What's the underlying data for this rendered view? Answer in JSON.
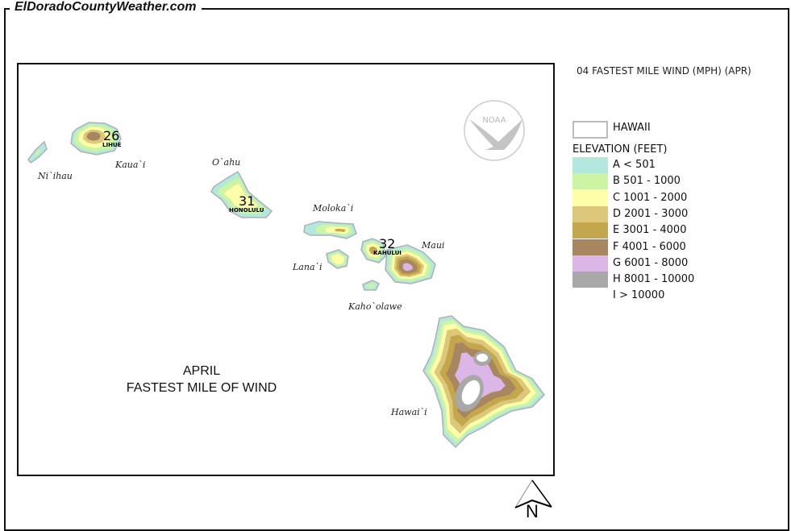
{
  "site_title": "ElDoradoCountyWeather.com",
  "map_heading": "04 FASTEST MILE WIND (MPH) (APR)",
  "map_title": {
    "line1": "APRIL",
    "line2": "FASTEST MILE OF WIND"
  },
  "logo_text": "NOAA",
  "north_label": "N",
  "legend": {
    "boundary_label": "HAWAII",
    "elevation_title": "ELEVATION (FEET)",
    "classes": [
      {
        "label": "A < 501",
        "color": "#b3e8de"
      },
      {
        "label": "B 501 - 1000",
        "color": "#ccf5a3"
      },
      {
        "label": "C 1001 - 2000",
        "color": "#ffffaa"
      },
      {
        "label": "D 2001 - 3000",
        "color": "#dcc77a"
      },
      {
        "label": "E 3001 - 4000",
        "color": "#c4a64c"
      },
      {
        "label": "F 4001 - 6000",
        "color": "#a88660"
      },
      {
        "label": "G 6001 - 8000",
        "color": "#dbb6e6"
      },
      {
        "label": "H 8001 - 10000",
        "color": "#a8a8a8"
      },
      {
        "label": "I > 10000",
        "color": "#ffffff"
      }
    ]
  },
  "places": [
    "Ni`ihau",
    "Kaua`i",
    "O`ahu",
    "Moloka`i",
    "Lana`i",
    "Maui",
    "Kaho`olawe",
    "Hawai`i"
  ],
  "stations": [
    {
      "name": "LIHUE",
      "value": "26"
    },
    {
      "name": "HONOLULU",
      "value": "31"
    },
    {
      "name": "KAHULUI",
      "value": "32"
    }
  ]
}
